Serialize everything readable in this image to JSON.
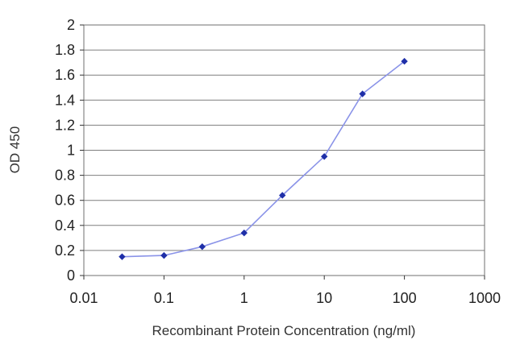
{
  "chart_data": {
    "type": "line",
    "title": "",
    "xlabel": "Recombinant Protein Concentration (ng/ml)",
    "ylabel": "OD 450",
    "x_scale": "log",
    "xlim": [
      0.01,
      1000
    ],
    "ylim": [
      0,
      2
    ],
    "x_ticks": [
      0.01,
      0.1,
      1,
      10,
      100,
      1000
    ],
    "x_tick_labels": [
      "0.01",
      "0.1",
      "1",
      "10",
      "100",
      "1000"
    ],
    "y_ticks": [
      0,
      0.2,
      0.4,
      0.6,
      0.8,
      1,
      1.2,
      1.4,
      1.6,
      1.8,
      2
    ],
    "y_tick_labels": [
      "0",
      "0.2",
      "0.4",
      "0.6",
      "0.8",
      "1",
      "1.2",
      "1.4",
      "1.6",
      "1.8",
      "2"
    ],
    "grid": "horizontal",
    "legend": "none",
    "x": [
      0.03,
      0.1,
      0.3,
      1,
      3,
      10,
      30,
      100
    ],
    "series": [
      {
        "values": [
          0.15,
          0.16,
          0.23,
          0.34,
          0.64,
          0.95,
          1.45,
          1.71
        ]
      }
    ],
    "colors": {
      "line": "#8a93e8",
      "marker": "#1f2fa8",
      "grid": "#7f7f7f"
    }
  }
}
